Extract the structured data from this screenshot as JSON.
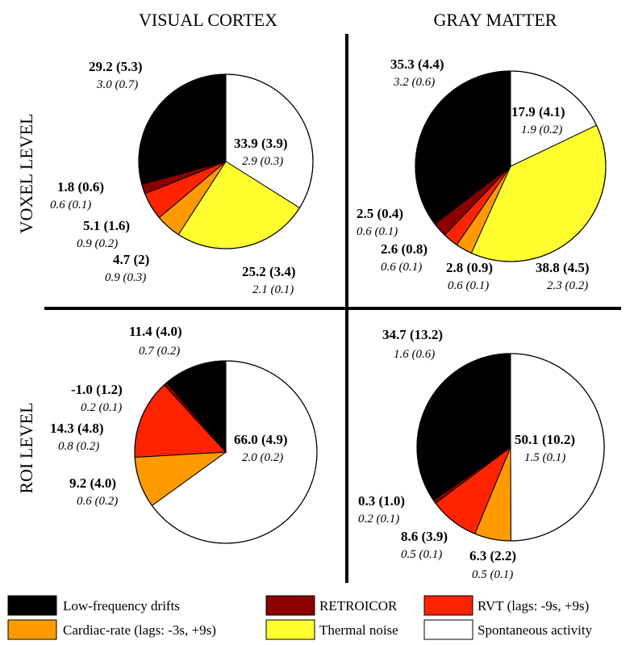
{
  "col_titles": [
    "VISUAL CORTEX",
    "GRAY MATTER"
  ],
  "row_titles": [
    "VOXEL LEVEL",
    "ROI LEVEL"
  ],
  "colors": {
    "lowfreq": "#000000",
    "retroicor": "#8b0000",
    "rvt": "#ff2400",
    "cardiac": "#ff9a00",
    "thermal": "#ffff30",
    "spontaneous": "#ffffff"
  },
  "legend": [
    {
      "key": "lowfreq",
      "label": "Low-frequency drifts"
    },
    {
      "key": "retroicor",
      "label": "RETROICOR"
    },
    {
      "key": "rvt",
      "label": "RVT (lags: -9s, +9s)"
    },
    {
      "key": "cardiac",
      "label": "Cardiac-rate (lags: -3s, +9s)"
    },
    {
      "key": "thermal",
      "label": "Thermal noise"
    },
    {
      "key": "spontaneous",
      "label": "Spontaneous activity"
    }
  ],
  "chart_data": [
    {
      "type": "pie",
      "title": "VISUAL CORTEX — VOXEL LEVEL",
      "slices": [
        {
          "key": "spontaneous",
          "value": 33.9,
          "label": "33.9 (3.9)",
          "sub": "2.9  (0.3)"
        },
        {
          "key": "thermal",
          "value": 25.2,
          "label": "25.2 (3.4)",
          "sub": "2.1  (0.1)"
        },
        {
          "key": "cardiac",
          "value": 4.7,
          "label": "4.7 (2)",
          "sub": "0.9 (0.3)"
        },
        {
          "key": "rvt",
          "value": 5.1,
          "label": "5.1 (1.6)",
          "sub": "0.9 (0.2)"
        },
        {
          "key": "retroicor",
          "value": 1.8,
          "label": "1.8 (0.6)",
          "sub": "0.6 (0.1)"
        },
        {
          "key": "lowfreq",
          "value": 29.2,
          "label": "29.2 (5.3)",
          "sub": "3.0  (0.7)"
        }
      ]
    },
    {
      "type": "pie",
      "title": "GRAY MATTER — VOXEL LEVEL",
      "slices": [
        {
          "key": "spontaneous",
          "value": 17.9,
          "label": "17.9 (4.1)",
          "sub": "1.9  (0.2)"
        },
        {
          "key": "thermal",
          "value": 38.8,
          "label": "38.8 (4.5)",
          "sub": "2.3 (0.2)"
        },
        {
          "key": "cardiac",
          "value": 2.8,
          "label": "2.8 (0.9)",
          "sub": "0.6 (0.1)"
        },
        {
          "key": "rvt",
          "value": 2.6,
          "label": "2.6 (0.8)",
          "sub": "0.6   (0.1)"
        },
        {
          "key": "retroicor",
          "value": 2.5,
          "label": "2.5 (0.4)",
          "sub": "0.6  (0.1)"
        },
        {
          "key": "lowfreq",
          "value": 35.3,
          "label": "35.3 (4.4)",
          "sub": "3.2  (0.6)"
        }
      ]
    },
    {
      "type": "pie",
      "title": "VISUAL CORTEX — ROI LEVEL",
      "slices": [
        {
          "key": "spontaneous",
          "value": 66.0,
          "label": "66.0 (4.9)",
          "sub": "2.0  (0.2)"
        },
        {
          "key": "cardiac",
          "value": 9.2,
          "label": "9.2 (4.0)",
          "sub": "0.6  (0.2)"
        },
        {
          "key": "rvt",
          "value": 14.3,
          "label": "14.3 (4.8)",
          "sub": "0.8  (0.2)"
        },
        {
          "key": "retroicor",
          "value": -1.0,
          "label": "-1.0 (1.2)",
          "sub": "0.2 (0.1)"
        },
        {
          "key": "lowfreq",
          "value": 11.4,
          "label": "11.4 (4.0)",
          "sub": "0.7  (0.2)"
        }
      ]
    },
    {
      "type": "pie",
      "title": "GRAY MATTER — ROI LEVEL",
      "slices": [
        {
          "key": "spontaneous",
          "value": 50.1,
          "label": "50.1 (10.2)",
          "sub": "1.5      (0.1)"
        },
        {
          "key": "cardiac",
          "value": 6.3,
          "label": "6.3 (2.2)",
          "sub": "0.5 (0.1)"
        },
        {
          "key": "rvt",
          "value": 8.6,
          "label": "8.6 (3.9)",
          "sub": "0.5 (0.1)"
        },
        {
          "key": "retroicor",
          "value": 0.3,
          "label": "0.3 (1.0)",
          "sub": "0.2 (0.1)"
        },
        {
          "key": "lowfreq",
          "value": 34.7,
          "label": "34.7 (13.2)",
          "sub": "1.6    (0.6)"
        }
      ]
    }
  ]
}
